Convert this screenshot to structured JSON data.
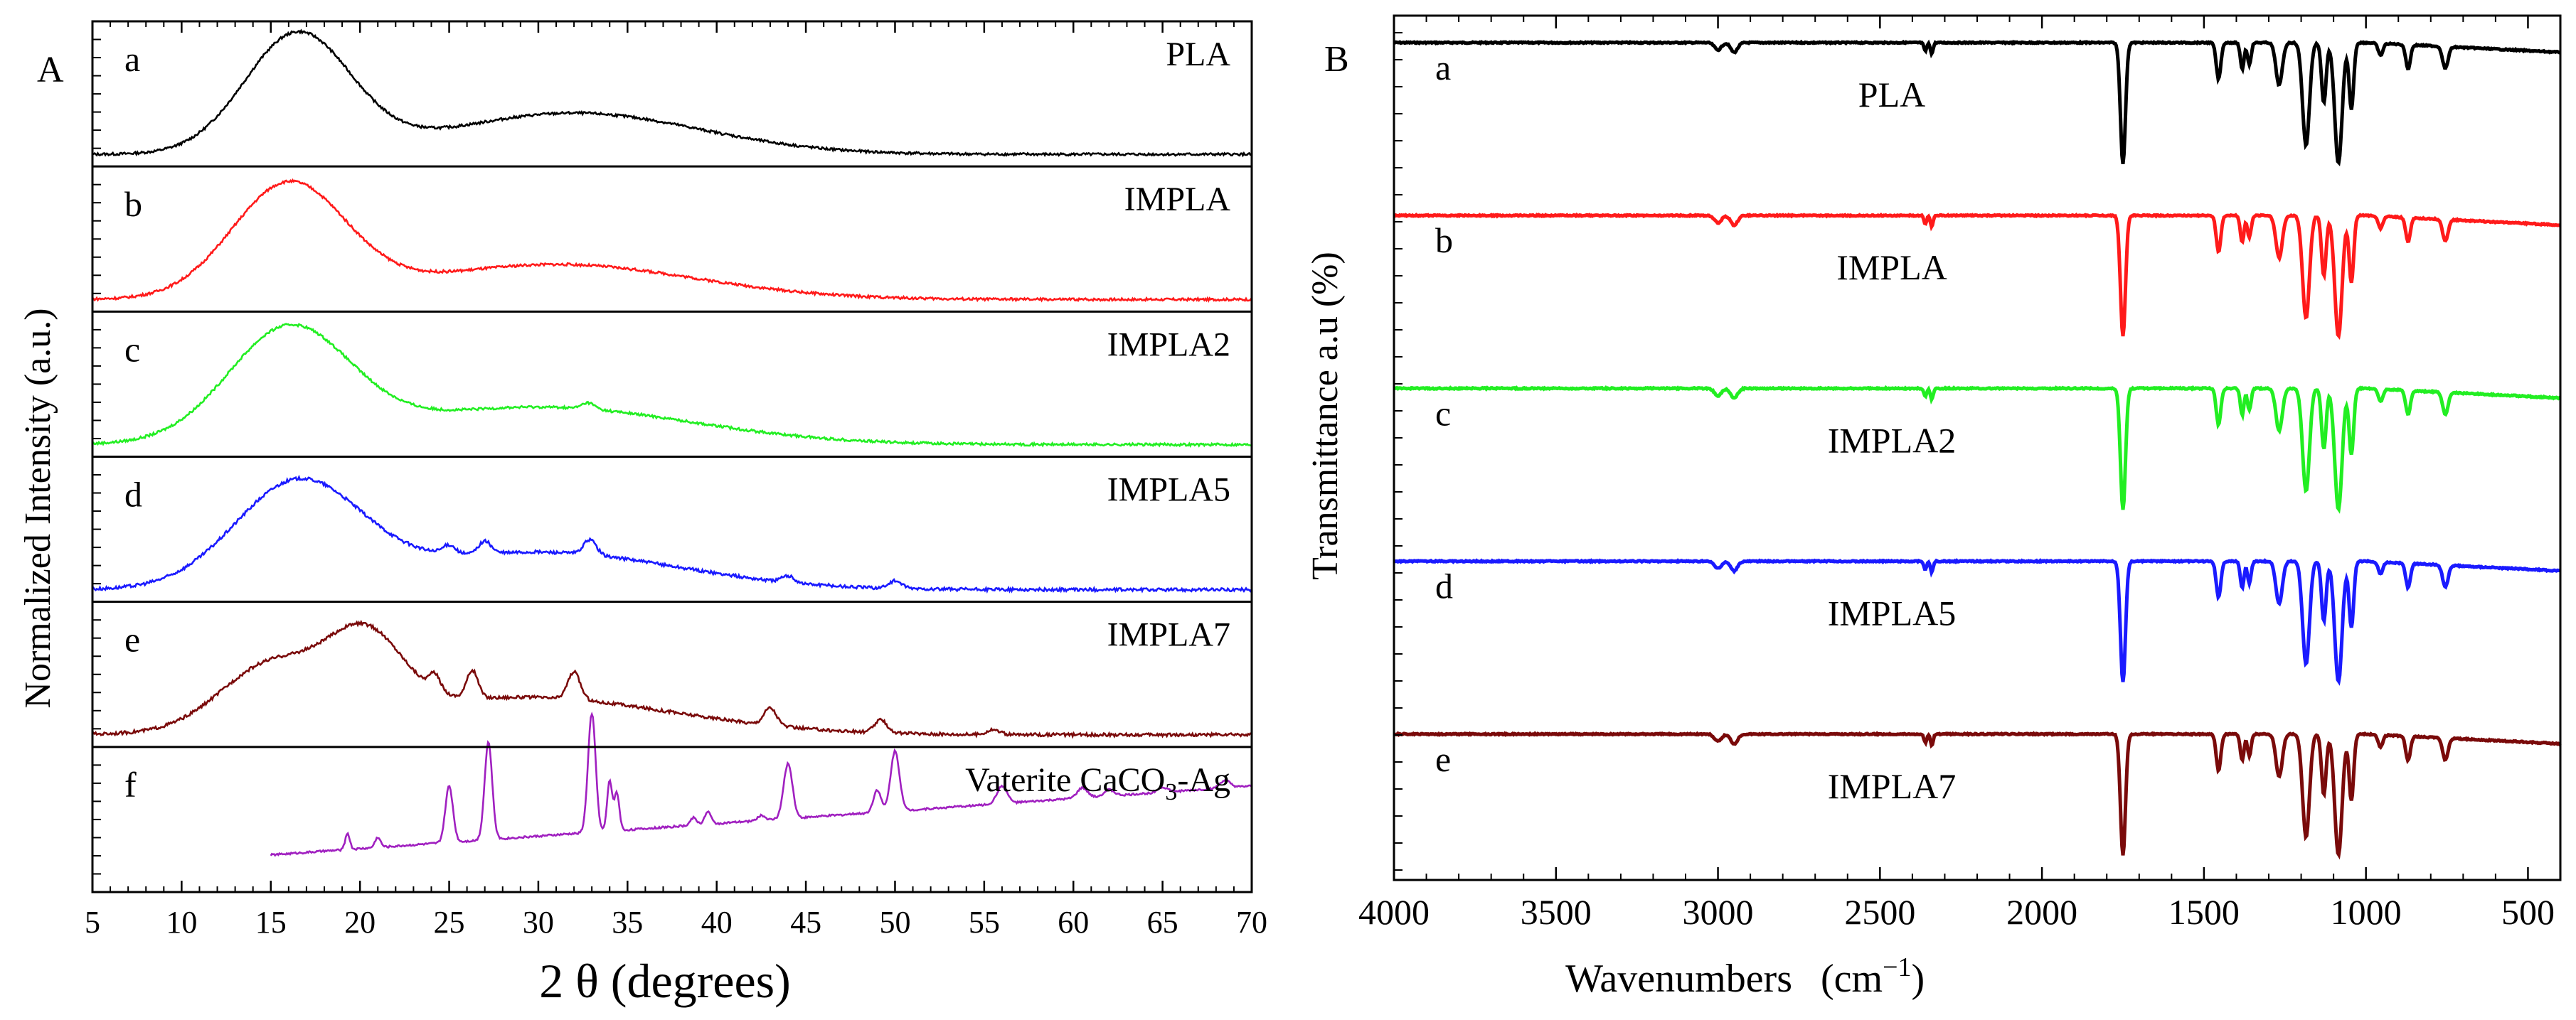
{
  "chart_data": [
    {
      "panel": "A",
      "type": "line",
      "stacked": true,
      "xlabel": "2 θ (degrees)",
      "ylabel": "Normalized Intensity (a.u.)",
      "xlim": [
        5,
        70
      ],
      "xticks": [
        5,
        10,
        15,
        20,
        25,
        30,
        35,
        40,
        45,
        50,
        55,
        60,
        65,
        70
      ],
      "grid": false,
      "series": [
        {
          "letter": "a",
          "name": "PLA",
          "color": "#000000",
          "x_start": 5,
          "noise": 0.02,
          "peaks": [
            {
              "c": 16.5,
              "h": 0.95,
              "w": 4.2
            },
            {
              "c": 32,
              "h": 0.33,
              "w": 10
            }
          ],
          "baseline": [
            0.04,
            0.0
          ]
        },
        {
          "letter": "b",
          "name": "IMPLA",
          "color": "#ff1a1a",
          "x_start": 5,
          "noise": 0.02,
          "peaks": [
            {
              "c": 16,
              "h": 0.9,
              "w": 4.5
            },
            {
              "c": 31,
              "h": 0.28,
              "w": 11
            }
          ],
          "baseline": [
            0.04,
            0.0
          ]
        },
        {
          "letter": "c",
          "name": "IMPLA2",
          "color": "#22ee22",
          "x_start": 5,
          "noise": 0.02,
          "peaks": [
            {
              "c": 16,
              "h": 0.88,
              "w": 4.8
            },
            {
              "c": 30,
              "h": 0.3,
              "w": 12
            },
            {
              "c": 32.8,
              "h": 0.05,
              "w": 0.5
            }
          ],
          "baseline": [
            0.04,
            0.0
          ]
        },
        {
          "letter": "d",
          "name": "IMPLA5",
          "color": "#1a1aff",
          "x_start": 5,
          "noise": 0.025,
          "peaks": [
            {
              "c": 16.5,
              "h": 0.82,
              "w": 5
            },
            {
              "c": 30,
              "h": 0.3,
              "w": 11
            },
            {
              "c": 25,
              "h": 0.07,
              "w": 0.5
            },
            {
              "c": 27,
              "h": 0.1,
              "w": 0.5
            },
            {
              "c": 32.9,
              "h": 0.12,
              "w": 0.5
            },
            {
              "c": 44,
              "h": 0.05,
              "w": 0.5
            },
            {
              "c": 50,
              "h": 0.06,
              "w": 0.5
            }
          ],
          "baseline": [
            0.04,
            0.0
          ]
        },
        {
          "letter": "e",
          "name": "IMPLA7",
          "color": "#7a0a0a",
          "x_start": 5,
          "noise": 0.025,
          "peaks": [
            {
              "c": 20.3,
              "h": 0.62,
              "w": 3
            },
            {
              "c": 15,
              "h": 0.5,
              "w": 4
            },
            {
              "c": 29,
              "h": 0.3,
              "w": 12
            },
            {
              "c": 24.2,
              "h": 0.12,
              "w": 0.45
            },
            {
              "c": 26.3,
              "h": 0.22,
              "w": 0.45
            },
            {
              "c": 32,
              "h": 0.22,
              "w": 0.5
            },
            {
              "c": 43,
              "h": 0.14,
              "w": 0.5
            },
            {
              "c": 49.2,
              "h": 0.1,
              "w": 0.5
            },
            {
              "c": 55.5,
              "h": 0.04,
              "w": 0.5
            }
          ],
          "baseline": [
            0.04,
            0.0
          ]
        },
        {
          "letter": "f",
          "name": "Vaterite CaCO3-Ag",
          "name_parts": [
            "Vaterite CaCO",
            "3",
            "-Ag"
          ],
          "color": "#a020c0",
          "x_start": 15,
          "noise": 0.015,
          "peaks": [
            {
              "c": 19.3,
              "h": 0.13,
              "w": 0.18
            },
            {
              "c": 21,
              "h": 0.08,
              "w": 0.22
            },
            {
              "c": 25,
              "h": 0.45,
              "w": 0.3
            },
            {
              "c": 27.2,
              "h": 0.78,
              "w": 0.3
            },
            {
              "c": 33,
              "h": 0.95,
              "w": 0.3
            },
            {
              "c": 34,
              "h": 0.4,
              "w": 0.2
            },
            {
              "c": 34.4,
              "h": 0.3,
              "w": 0.2
            },
            {
              "c": 38.7,
              "h": 0.06,
              "w": 0.25
            },
            {
              "c": 39.5,
              "h": 0.1,
              "w": 0.25
            },
            {
              "c": 42.5,
              "h": 0.04,
              "w": 0.3
            },
            {
              "c": 44,
              "h": 0.44,
              "w": 0.35
            },
            {
              "c": 49,
              "h": 0.18,
              "w": 0.3
            },
            {
              "c": 50,
              "h": 0.48,
              "w": 0.35
            },
            {
              "c": 56,
              "h": 0.14,
              "w": 0.4
            },
            {
              "c": 60.5,
              "h": 0.08,
              "w": 0.4
            },
            {
              "c": 62,
              "h": 0.05,
              "w": 0.4
            },
            {
              "c": 65,
              "h": 0.04,
              "w": 0.4
            },
            {
              "c": 68.5,
              "h": 0.06,
              "w": 0.4
            }
          ],
          "baseline": [
            0.14,
            0.01
          ]
        }
      ]
    },
    {
      "panel": "B",
      "type": "line",
      "stacked": true,
      "xlabel": "Wavenumbers",
      "xunit": "(cm",
      "xunit_sup": "−1",
      "xunit_close": ")",
      "ylabel": "Transmittance a.u (%)",
      "xlim": [
        4000,
        400
      ],
      "xticks": [
        4000,
        3500,
        3000,
        2500,
        2000,
        1500,
        1000,
        500
      ],
      "grid": false,
      "bands": [
        {
          "c": 3000,
          "d": 0.06,
          "w": 15
        },
        {
          "c": 2950,
          "d": 0.08,
          "w": 15
        },
        {
          "c": 2340,
          "d": 0.09,
          "w": 6
        },
        {
          "c": 2360,
          "d": 0.07,
          "w": 6
        },
        {
          "c": 1750,
          "d": 1.0,
          "w": 11
        },
        {
          "c": 1455,
          "d": 0.3,
          "w": 10
        },
        {
          "c": 1382,
          "d": 0.22,
          "w": 8
        },
        {
          "c": 1360,
          "d": 0.18,
          "w": 8
        },
        {
          "c": 1268,
          "d": 0.35,
          "w": 14
        },
        {
          "c": 1185,
          "d": 0.85,
          "w": 15
        },
        {
          "c": 1130,
          "d": 0.5,
          "w": 10
        },
        {
          "c": 1085,
          "d": 1.0,
          "w": 16
        },
        {
          "c": 1045,
          "d": 0.55,
          "w": 10
        },
        {
          "c": 955,
          "d": 0.1,
          "w": 10
        },
        {
          "c": 870,
          "d": 0.2,
          "w": 10
        },
        {
          "c": 755,
          "d": 0.18,
          "w": 12
        }
      ],
      "series": [
        {
          "letter": "a",
          "name": "PLA",
          "color": "#000000"
        },
        {
          "letter": "b",
          "name": "IMPLA",
          "color": "#ff1a1a"
        },
        {
          "letter": "c",
          "name": "IMPLA2",
          "color": "#22ee22"
        },
        {
          "letter": "d",
          "name": "IMPLA5",
          "color": "#1a1aff"
        },
        {
          "letter": "e",
          "name": "IMPLA7",
          "color": "#7a0a0a"
        }
      ]
    }
  ]
}
